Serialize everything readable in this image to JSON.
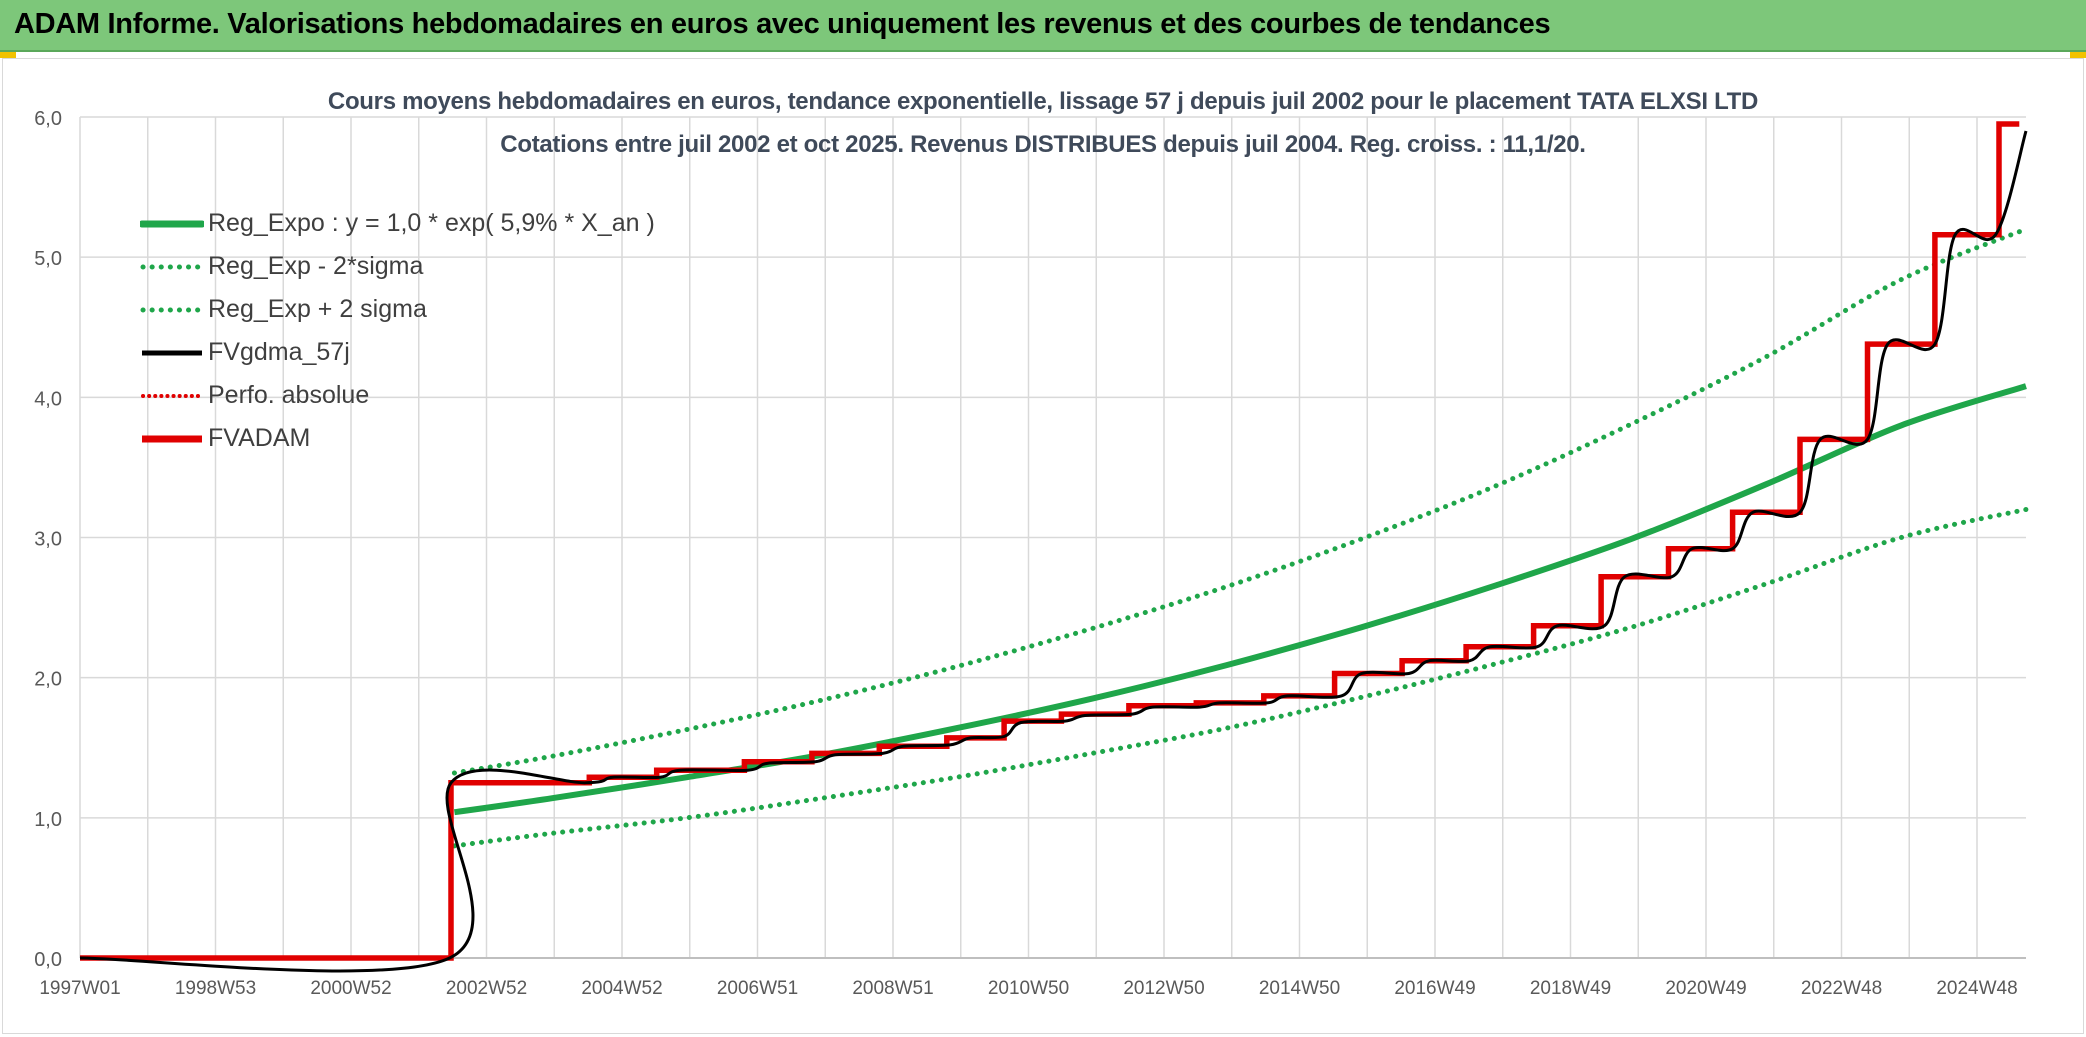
{
  "banner": {
    "title": "ADAM Informe. Valorisations hebdomadaires en euros avec uniquement les revenus et des courbes de tendances"
  },
  "colors": {
    "banner_bg": "#7dc77a",
    "reg_expo": "#1fa64a",
    "sigma": "#1fa64a",
    "fvgdma": "#000000",
    "perfo": "#e00000",
    "fvadam": "#e00000",
    "grid": "#d9d9d9",
    "corner_accent": "#f2c200"
  },
  "chart_data": {
    "type": "line",
    "title_line1": "Cours moyens hebdomadaires en euros, tendance exponentielle, lissage 57 j depuis juil 2002 pour le placement TATA  ELXSI LTD",
    "title_line2": "Cotations entre juil 2002 et oct 2025. Revenus DISTRIBUES depuis juil 2004. Reg. croiss. : 11,1/20.",
    "xlabel": "",
    "ylabel": "",
    "x_tick_labels": [
      "1997W01",
      "1998W53",
      "2000W52",
      "2002W52",
      "2004W52",
      "2006W51",
      "2008W51",
      "2010W50",
      "2012W50",
      "2014W50",
      "2016W49",
      "2018W49",
      "2020W49",
      "2022W48",
      "2024W48"
    ],
    "y_tick_labels": [
      "0,0",
      "1,0",
      "2,0",
      "3,0",
      "4,0",
      "5,0",
      "6,0"
    ],
    "ylim": [
      0,
      6
    ],
    "xlim": [
      1997.0,
      2025.85
    ],
    "grid": true,
    "legend_position": "top-left",
    "series": [
      {
        "name": "Reg_Expo : y = 1,0 * exp( 5,9% *  X_an )",
        "style": "solid-thick",
        "points": [
          [
            2002.55,
            1.04
          ],
          [
            2004.0,
            1.14
          ],
          [
            2006.0,
            1.29
          ],
          [
            2008.0,
            1.45
          ],
          [
            2010.0,
            1.64
          ],
          [
            2012.0,
            1.85
          ],
          [
            2014.0,
            2.09
          ],
          [
            2016.0,
            2.36
          ],
          [
            2018.0,
            2.66
          ],
          [
            2020.0,
            2.99
          ],
          [
            2022.0,
            3.38
          ],
          [
            2024.0,
            3.8
          ],
          [
            2025.85,
            4.08
          ]
        ]
      },
      {
        "name": "Reg_Exp - 2*sigma",
        "style": "dotted",
        "points": [
          [
            2002.55,
            0.8
          ],
          [
            2004.0,
            0.89
          ],
          [
            2006.0,
            1.0
          ],
          [
            2008.0,
            1.14
          ],
          [
            2010.0,
            1.29
          ],
          [
            2012.0,
            1.46
          ],
          [
            2014.0,
            1.64
          ],
          [
            2016.0,
            1.86
          ],
          [
            2018.0,
            2.1
          ],
          [
            2020.0,
            2.36
          ],
          [
            2022.0,
            2.67
          ],
          [
            2024.0,
            3.0
          ],
          [
            2025.85,
            3.2
          ]
        ]
      },
      {
        "name": "Reg_Exp + 2 sigma",
        "style": "dotted",
        "points": [
          [
            2002.55,
            1.32
          ],
          [
            2004.0,
            1.44
          ],
          [
            2006.0,
            1.63
          ],
          [
            2008.0,
            1.84
          ],
          [
            2010.0,
            2.08
          ],
          [
            2012.0,
            2.35
          ],
          [
            2014.0,
            2.65
          ],
          [
            2016.0,
            2.99
          ],
          [
            2018.0,
            3.37
          ],
          [
            2020.0,
            3.81
          ],
          [
            2022.0,
            4.29
          ],
          [
            2024.0,
            4.84
          ],
          [
            2025.85,
            5.2
          ]
        ]
      },
      {
        "name": "FVgdma_57j",
        "style": "solid",
        "points": [
          [
            1997.0,
            0.0
          ],
          [
            2002.48,
            0.0
          ],
          [
            2002.5,
            1.25
          ],
          [
            2004.5,
            1.25
          ],
          [
            2004.9,
            1.29
          ],
          [
            2005.6,
            1.29
          ],
          [
            2005.9,
            1.34
          ],
          [
            2006.9,
            1.34
          ],
          [
            2007.2,
            1.39
          ],
          [
            2007.9,
            1.4
          ],
          [
            2008.2,
            1.45
          ],
          [
            2008.9,
            1.46
          ],
          [
            2009.2,
            1.51
          ],
          [
            2009.9,
            1.52
          ],
          [
            2010.2,
            1.57
          ],
          [
            2010.7,
            1.58
          ],
          [
            2010.95,
            1.68
          ],
          [
            2011.6,
            1.69
          ],
          [
            2011.9,
            1.73
          ],
          [
            2012.6,
            1.74
          ],
          [
            2012.9,
            1.79
          ],
          [
            2013.6,
            1.79
          ],
          [
            2013.9,
            1.82
          ],
          [
            2014.6,
            1.82
          ],
          [
            2014.9,
            1.87
          ],
          [
            2015.7,
            1.87
          ],
          [
            2016.0,
            2.03
          ],
          [
            2016.7,
            2.03
          ],
          [
            2017.0,
            2.12
          ],
          [
            2017.6,
            2.12
          ],
          [
            2017.9,
            2.22
          ],
          [
            2018.6,
            2.22
          ],
          [
            2018.9,
            2.37
          ],
          [
            2019.6,
            2.37
          ],
          [
            2019.9,
            2.72
          ],
          [
            2020.6,
            2.72
          ],
          [
            2020.9,
            2.92
          ],
          [
            2021.5,
            2.92
          ],
          [
            2021.8,
            3.18
          ],
          [
            2022.5,
            3.18
          ],
          [
            2022.8,
            3.7
          ],
          [
            2023.5,
            3.7
          ],
          [
            2023.8,
            4.38
          ],
          [
            2024.5,
            4.38
          ],
          [
            2024.8,
            5.16
          ],
          [
            2025.4,
            5.16
          ],
          [
            2025.85,
            5.9
          ]
        ]
      },
      {
        "name": "Perfo. absolue",
        "style": "dotted-red",
        "points": []
      },
      {
        "name": "FVADAM",
        "style": "step-thick",
        "points": [
          [
            1997.0,
            0.0
          ],
          [
            2002.5,
            0.0
          ],
          [
            2002.5,
            1.25
          ],
          [
            2004.55,
            1.25
          ],
          [
            2004.55,
            1.29
          ],
          [
            2005.55,
            1.29
          ],
          [
            2005.55,
            1.34
          ],
          [
            2006.85,
            1.34
          ],
          [
            2006.85,
            1.4
          ],
          [
            2007.85,
            1.4
          ],
          [
            2007.85,
            1.46
          ],
          [
            2008.85,
            1.46
          ],
          [
            2008.85,
            1.51
          ],
          [
            2009.85,
            1.51
          ],
          [
            2009.85,
            1.57
          ],
          [
            2010.7,
            1.57
          ],
          [
            2010.7,
            1.69
          ],
          [
            2011.55,
            1.69
          ],
          [
            2011.55,
            1.74
          ],
          [
            2012.55,
            1.74
          ],
          [
            2012.55,
            1.8
          ],
          [
            2013.55,
            1.8
          ],
          [
            2013.55,
            1.82
          ],
          [
            2014.55,
            1.82
          ],
          [
            2014.55,
            1.87
          ],
          [
            2015.6,
            1.87
          ],
          [
            2015.6,
            2.03
          ],
          [
            2016.6,
            2.03
          ],
          [
            2016.6,
            2.12
          ],
          [
            2017.55,
            2.12
          ],
          [
            2017.55,
            2.22
          ],
          [
            2018.55,
            2.22
          ],
          [
            2018.55,
            2.37
          ],
          [
            2019.55,
            2.37
          ],
          [
            2019.55,
            2.72
          ],
          [
            2020.55,
            2.72
          ],
          [
            2020.55,
            2.92
          ],
          [
            2021.5,
            2.92
          ],
          [
            2021.5,
            3.18
          ],
          [
            2022.5,
            3.18
          ],
          [
            2022.5,
            3.7
          ],
          [
            2023.5,
            3.7
          ],
          [
            2023.5,
            4.38
          ],
          [
            2024.5,
            4.38
          ],
          [
            2024.5,
            5.16
          ],
          [
            2025.45,
            5.16
          ],
          [
            2025.45,
            5.95
          ],
          [
            2025.75,
            5.95
          ]
        ]
      }
    ]
  }
}
